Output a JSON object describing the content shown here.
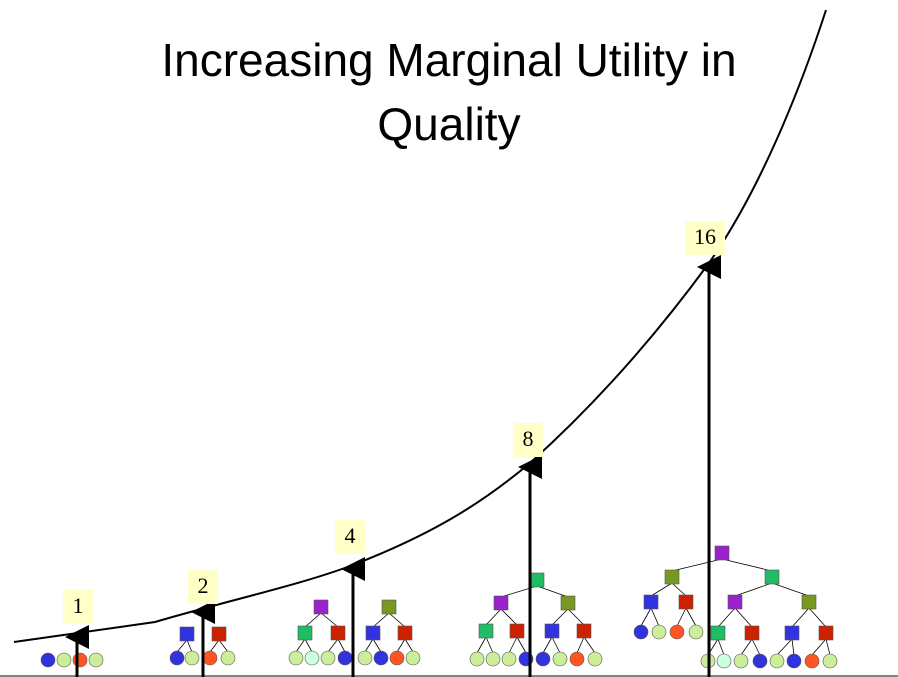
{
  "title": "Increasing Marginal Utility in Quality",
  "markers": [
    {
      "label": "1"
    },
    {
      "label": "2"
    },
    {
      "label": "4"
    },
    {
      "label": "8"
    },
    {
      "label": "16"
    }
  ]
}
